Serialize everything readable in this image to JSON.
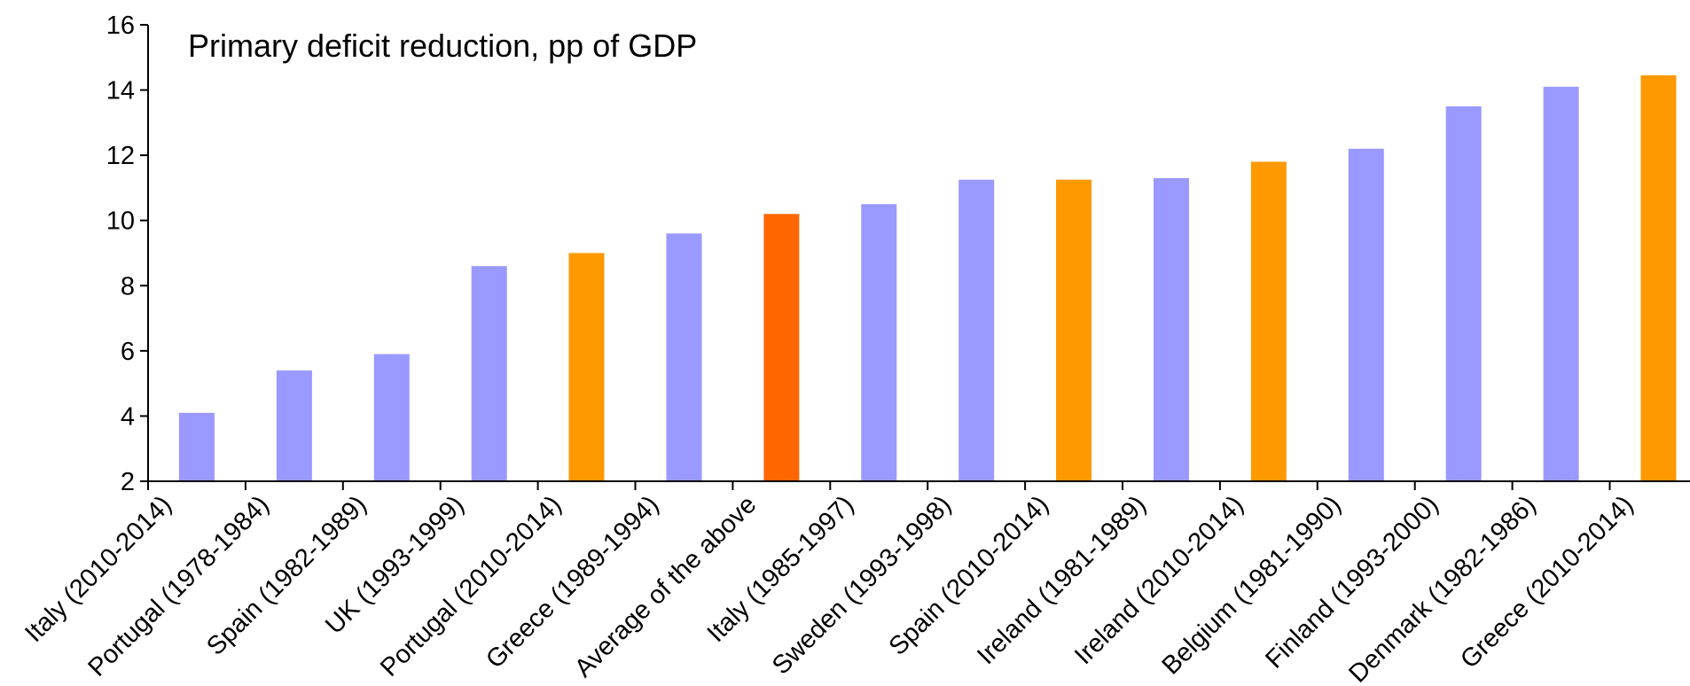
{
  "chart_data": {
    "type": "bar",
    "title": "Primary deficit reduction, pp of GDP",
    "xlabel": "",
    "ylabel": "",
    "ylim": [
      2,
      16
    ],
    "yticks": [
      2,
      4,
      6,
      8,
      10,
      12,
      14,
      16
    ],
    "grid": false,
    "legend": "none",
    "categories": [
      "Italy (2010-2014)",
      "Portugal (1978-1984)",
      "Spain (1982-1989)",
      "UK (1993-1999)",
      "Portugal (2010-2014)",
      "Greece (1989-1994)",
      "Average of the above",
      "Italy (1985-1997)",
      "Sweden (1993-1998)",
      "Spain (2010-2014)",
      "Ireland (1981-1989)",
      "Ireland (2010-2014)",
      "Belgium (1981-1990)",
      "Finland (1993-2000)",
      "Denmark (1982-1986)",
      "Greece (2010-2014)"
    ],
    "values": [
      4.1,
      5.4,
      5.9,
      8.6,
      9.0,
      9.6,
      10.2,
      10.5,
      11.25,
      11.25,
      11.3,
      11.8,
      12.2,
      13.5,
      14.1,
      14.45
    ],
    "colors": [
      "#9999ff",
      "#9999ff",
      "#9999ff",
      "#9999ff",
      "#ff9900",
      "#9999ff",
      "#ff6600",
      "#9999ff",
      "#9999ff",
      "#ff9900",
      "#9999ff",
      "#ff9900",
      "#9999ff",
      "#9999ff",
      "#9999ff",
      "#ff9900"
    ]
  }
}
